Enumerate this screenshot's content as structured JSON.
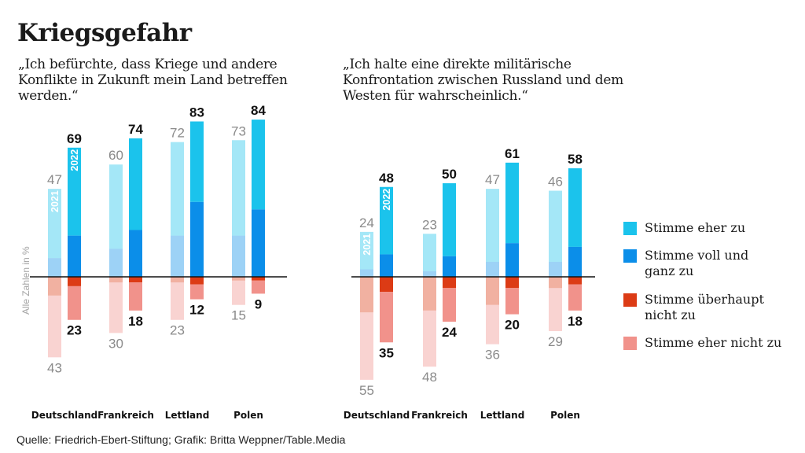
{
  "title": "Kriegsgefahr",
  "source": "Quelle: Friedrich-Ebert-Stiftung; Grafik: Britta Weppner/Table.Media",
  "y_axis_note": "Alle Zahlen in %",
  "colors": {
    "eher_zu": "#1bc3ec",
    "voll_und_ganz_zu": "#0b8ee9",
    "ueberhaupt_nicht_zu": "#dc3b15",
    "eher_nicht_zu": "#f1928b",
    "alpha_2021": 0.4,
    "label_2021": "#8a8a8a",
    "label_2022": "#111111"
  },
  "legend": [
    {
      "key": "eher_zu",
      "label": "Stimme eher zu"
    },
    {
      "key": "voll_und_ganz_zu",
      "label": "Stimme voll und\nganz zu"
    },
    {
      "key": "ueberhaupt_nicht_zu",
      "label": "Stimme überhaupt\nnicht zu"
    },
    {
      "key": "eher_nicht_zu",
      "label": "Stimme eher nicht zu"
    }
  ],
  "chart_data": [
    {
      "type": "bar",
      "subtitle": "„Ich befürchte, dass Kriege und andere Konflikte in Zukunft mein Land betreffen werden.“",
      "categories": [
        "Deutschland",
        "Frankreich",
        "Lettland",
        "Polen"
      ],
      "year_labels": [
        "2021",
        "2022"
      ],
      "series": [
        {
          "year": "2021",
          "agree_total": [
            47,
            60,
            72,
            73
          ],
          "fully_agree": [
            10,
            15,
            22,
            22
          ],
          "disagree_total": [
            43,
            30,
            23,
            15
          ],
          "strongly_disagree": [
            10,
            3,
            3,
            2
          ]
        },
        {
          "year": "2022",
          "agree_total": [
            69,
            74,
            83,
            84
          ],
          "fully_agree": [
            22,
            25,
            40,
            36
          ],
          "disagree_total": [
            23,
            18,
            12,
            9
          ],
          "strongly_disagree": [
            5,
            3,
            4,
            2
          ]
        }
      ]
    },
    {
      "type": "bar",
      "subtitle": "„Ich halte eine direkte militärische Konfrontation zwischen Russland und dem Westen für wahrscheinlich.“",
      "categories": [
        "Deutschland",
        "Frankreich",
        "Lettland",
        "Polen"
      ],
      "year_labels": [
        "2021",
        "2022"
      ],
      "series": [
        {
          "year": "2021",
          "agree_total": [
            24,
            23,
            47,
            46
          ],
          "fully_agree": [
            4,
            3,
            8,
            8
          ],
          "disagree_total": [
            55,
            48,
            36,
            29
          ],
          "strongly_disagree": [
            19,
            18,
            15,
            6
          ]
        },
        {
          "year": "2022",
          "agree_total": [
            48,
            50,
            61,
            58
          ],
          "fully_agree": [
            12,
            11,
            18,
            16
          ],
          "disagree_total": [
            35,
            24,
            20,
            18
          ],
          "strongly_disagree": [
            8,
            6,
            6,
            4
          ]
        }
      ]
    }
  ]
}
